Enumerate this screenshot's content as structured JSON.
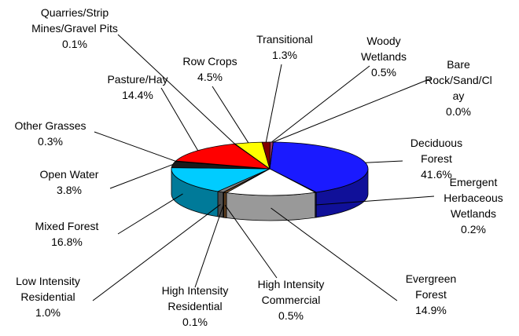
{
  "chart_data": {
    "type": "pie",
    "categories": [
      "Deciduous Forest",
      "Emergent Herbaceous Wetlands",
      "Evergreen Forest",
      "High Intensity Commercial",
      "High Intensity Residential",
      "Low Intensity Residential",
      "Mixed Forest",
      "Open Water",
      "Other Grasses",
      "Pasture/Hay",
      "Quarries/Strip Mines/Gravel Pits",
      "Row Crops",
      "Transitional",
      "Woody Wetlands",
      "Bare Rock/Sand/Clay"
    ],
    "values": [
      41.6,
      0.2,
      14.9,
      0.5,
      0.1,
      1.0,
      16.8,
      3.8,
      0.3,
      14.4,
      0.1,
      4.5,
      1.3,
      0.5,
      0.0
    ],
    "value_labels": [
      "41.6%",
      "0.2%",
      "14.9%",
      "0.5%",
      "0.1%",
      "1.0%",
      "16.8%",
      "3.8%",
      "0.3%",
      "14.4%",
      "0.1%",
      "4.5%",
      "1.3%",
      "0.5%",
      "0.0%"
    ],
    "colors": [
      "#1a1aff",
      "#333399",
      "#ffffff",
      "#996633",
      "#cc9966",
      "#808080",
      "#00ccff",
      "#1a1a1a",
      "#99cc00",
      "#ff0000",
      "#ffcc99",
      "#ffff00",
      "#800000",
      "#993366",
      "#c0c0c0"
    ]
  }
}
